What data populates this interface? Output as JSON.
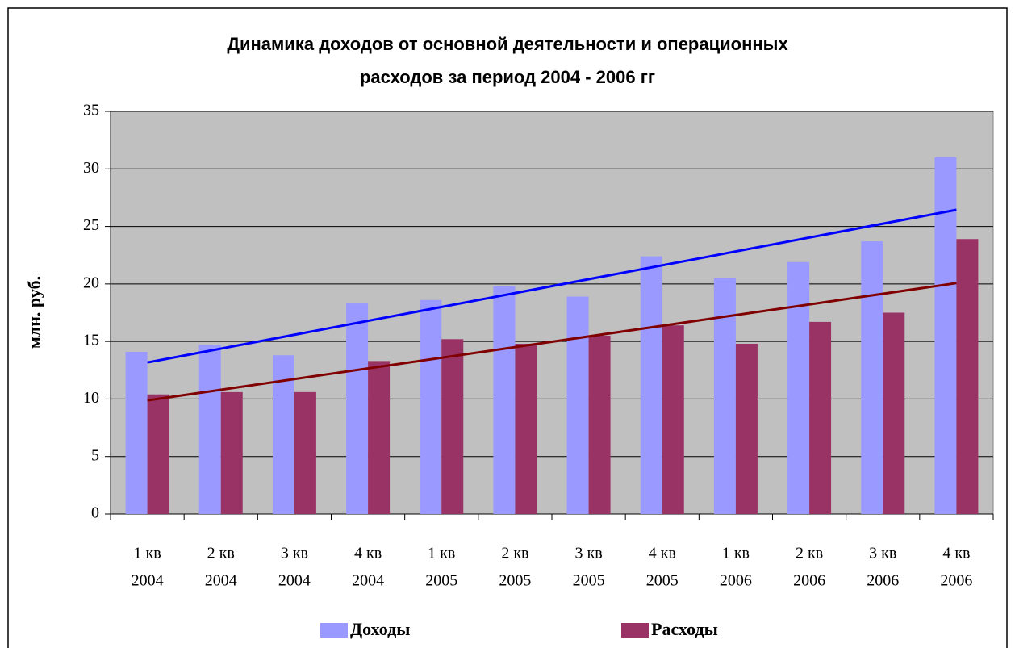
{
  "chart_data": {
    "type": "bar",
    "title": "Динамика доходов от основной деятельности и операционных расходов за период 2004 - 2006 гг",
    "ylabel": "млн. руб.",
    "categories": [
      [
        "1 кв",
        "2004"
      ],
      [
        "2 кв",
        "2004"
      ],
      [
        "3 кв",
        "2004"
      ],
      [
        "4 кв",
        "2004"
      ],
      [
        "1 кв",
        "2005"
      ],
      [
        "2 кв",
        "2005"
      ],
      [
        "3 кв",
        "2005"
      ],
      [
        "4 кв",
        "2005"
      ],
      [
        "1 кв",
        "2006"
      ],
      [
        "2 кв",
        "2006"
      ],
      [
        "3 кв",
        "2006"
      ],
      [
        "4 кв",
        "2006"
      ]
    ],
    "series": [
      {
        "name": "Доходы",
        "color": "#9999ff",
        "trend_color": "#0000ff",
        "values": [
          14.1,
          14.7,
          13.8,
          18.3,
          18.6,
          19.8,
          18.9,
          22.4,
          20.5,
          21.9,
          23.7,
          31.0
        ]
      },
      {
        "name": "Расходы",
        "color": "#993366",
        "trend_color": "#800000",
        "values": [
          10.4,
          10.6,
          10.6,
          13.3,
          15.2,
          14.8,
          15.5,
          16.4,
          14.8,
          16.7,
          17.5,
          23.9
        ]
      }
    ],
    "trendline": true,
    "ylim": [
      0,
      35
    ],
    "yticks": [
      0,
      5,
      10,
      15,
      20,
      25,
      30,
      35
    ],
    "grid": true,
    "plot_background": "#c0c0c0",
    "legend": "bottom"
  }
}
